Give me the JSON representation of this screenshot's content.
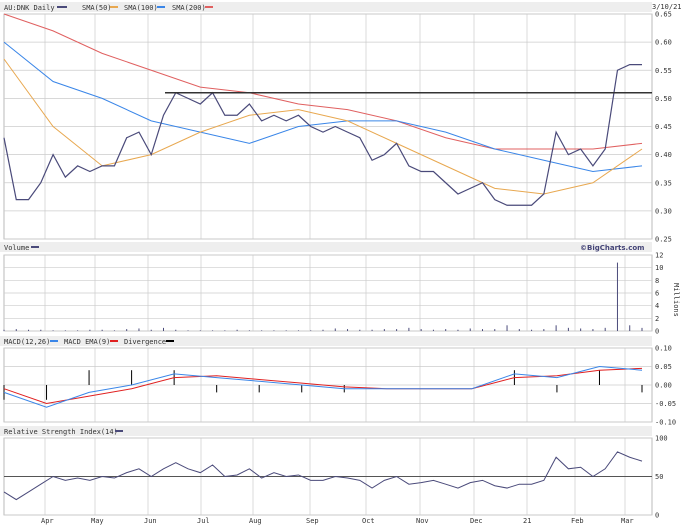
{
  "date_label": "3/10/21",
  "watermark": "©BigCharts.com",
  "colors": {
    "price": "#4a4a7a",
    "sma50": "#e8a850",
    "sma100": "#3a86e8",
    "sma200": "#e06060",
    "macd": "#3a86e8",
    "macd_ema": "#e02020",
    "divergence": "#000000",
    "grid": "#cccccc",
    "strip": "#eeeeee"
  },
  "months": [
    "Apr",
    "May",
    "Jun",
    "Jul",
    "Aug",
    "Sep",
    "Oct",
    "Nov",
    "Dec",
    "21",
    "Feb",
    "Mar"
  ],
  "chart_data": [
    {
      "type": "line",
      "title": "AU:DNK Daily",
      "legend": [
        {
          "name": "AU:DNK Daily",
          "color": "#4a4a7a"
        },
        {
          "name": "SMA(50)",
          "color": "#e8a850"
        },
        {
          "name": "SMA(100)",
          "color": "#3a86e8"
        },
        {
          "name": "SMA(200)",
          "color": "#e06060"
        }
      ],
      "ylim": [
        0.25,
        0.65
      ],
      "yticks": [
        "0.65",
        "0.60",
        "0.55",
        "0.50",
        "0.45",
        "0.40",
        "0.35",
        "0.30",
        "0.25"
      ],
      "grid": true,
      "horizontal_line": 0.51,
      "price": [
        0.43,
        0.32,
        0.32,
        0.35,
        0.4,
        0.36,
        0.38,
        0.37,
        0.38,
        0.38,
        0.43,
        0.44,
        0.4,
        0.47,
        0.51,
        0.5,
        0.49,
        0.51,
        0.47,
        0.47,
        0.49,
        0.46,
        0.47,
        0.46,
        0.47,
        0.45,
        0.44,
        0.45,
        0.44,
        0.43,
        0.39,
        0.4,
        0.42,
        0.38,
        0.37,
        0.37,
        0.35,
        0.33,
        0.34,
        0.35,
        0.32,
        0.31,
        0.31,
        0.31,
        0.33,
        0.44,
        0.4,
        0.41,
        0.38,
        0.41,
        0.55,
        0.56,
        0.56
      ],
      "sma50": [
        0.57,
        0.45,
        0.38,
        0.4,
        0.44,
        0.47,
        0.48,
        0.46,
        0.42,
        0.38,
        0.34,
        0.33,
        0.35,
        0.41
      ],
      "sma100": [
        0.6,
        0.53,
        0.5,
        0.46,
        0.44,
        0.42,
        0.45,
        0.46,
        0.46,
        0.44,
        0.41,
        0.39,
        0.37,
        0.38
      ],
      "sma200": [
        0.65,
        0.62,
        0.58,
        0.55,
        0.52,
        0.51,
        0.49,
        0.48,
        0.46,
        0.43,
        0.41,
        0.41,
        0.41,
        0.42
      ]
    },
    {
      "type": "bar",
      "title": "Volume",
      "ylabel": "Millions",
      "ylim": [
        0,
        12
      ],
      "yticks": [
        "12",
        "10",
        "8",
        "6",
        "4",
        "2",
        "0"
      ],
      "values": [
        0.2,
        0.3,
        0.2,
        0.2,
        0.1,
        0.1,
        0.1,
        0.2,
        0.2,
        0.1,
        0.3,
        0.4,
        0.2,
        0.5,
        0.2,
        0.1,
        0.1,
        0.1,
        0.1,
        0.2,
        0.1,
        0.1,
        0.1,
        0.1,
        0.1,
        0.1,
        0.2,
        0.4,
        0.3,
        0.2,
        0.2,
        0.3,
        0.3,
        0.5,
        0.3,
        0.2,
        0.3,
        0.2,
        0.4,
        0.3,
        0.3,
        0.9,
        0.3,
        0.2,
        0.3,
        0.9,
        0.5,
        0.4,
        0.3,
        0.5,
        10.8,
        0.9,
        0.5
      ]
    },
    {
      "type": "line",
      "title": "MACD",
      "legend": [
        {
          "name": "MACD(12,26)",
          "color": "#3a86e8"
        },
        {
          "name": "MACD EMA(9)",
          "color": "#e02020"
        },
        {
          "name": "Divergence",
          "color": "#000000"
        }
      ],
      "ylim": [
        -0.1,
        0.1
      ],
      "yticks": [
        "0.10",
        "0.05",
        "0.00",
        "-0.05",
        "-0.10"
      ],
      "macd": [
        -0.02,
        -0.06,
        -0.02,
        0.0,
        0.03,
        0.02,
        0.01,
        0.0,
        -0.01,
        -0.01,
        -0.01,
        -0.01,
        0.03,
        0.02,
        0.05,
        0.04
      ],
      "macd_ema": [
        -0.01,
        -0.05,
        -0.03,
        -0.01,
        0.02,
        0.025,
        0.015,
        0.005,
        -0.005,
        -0.01,
        -0.01,
        -0.01,
        0.02,
        0.025,
        0.04,
        0.045
      ]
    },
    {
      "type": "line",
      "title": "Relative Strength Index(14)",
      "ylim": [
        0,
        100
      ],
      "yticks": [
        "100",
        "50",
        "0"
      ],
      "reference_line": 50,
      "values": [
        30,
        20,
        30,
        40,
        50,
        45,
        48,
        45,
        50,
        48,
        55,
        60,
        50,
        60,
        68,
        60,
        55,
        65,
        50,
        52,
        60,
        48,
        55,
        50,
        52,
        45,
        45,
        50,
        48,
        45,
        35,
        45,
        50,
        40,
        42,
        45,
        40,
        35,
        42,
        45,
        38,
        35,
        40,
        40,
        45,
        75,
        60,
        62,
        50,
        60,
        82,
        75,
        70
      ]
    }
  ]
}
